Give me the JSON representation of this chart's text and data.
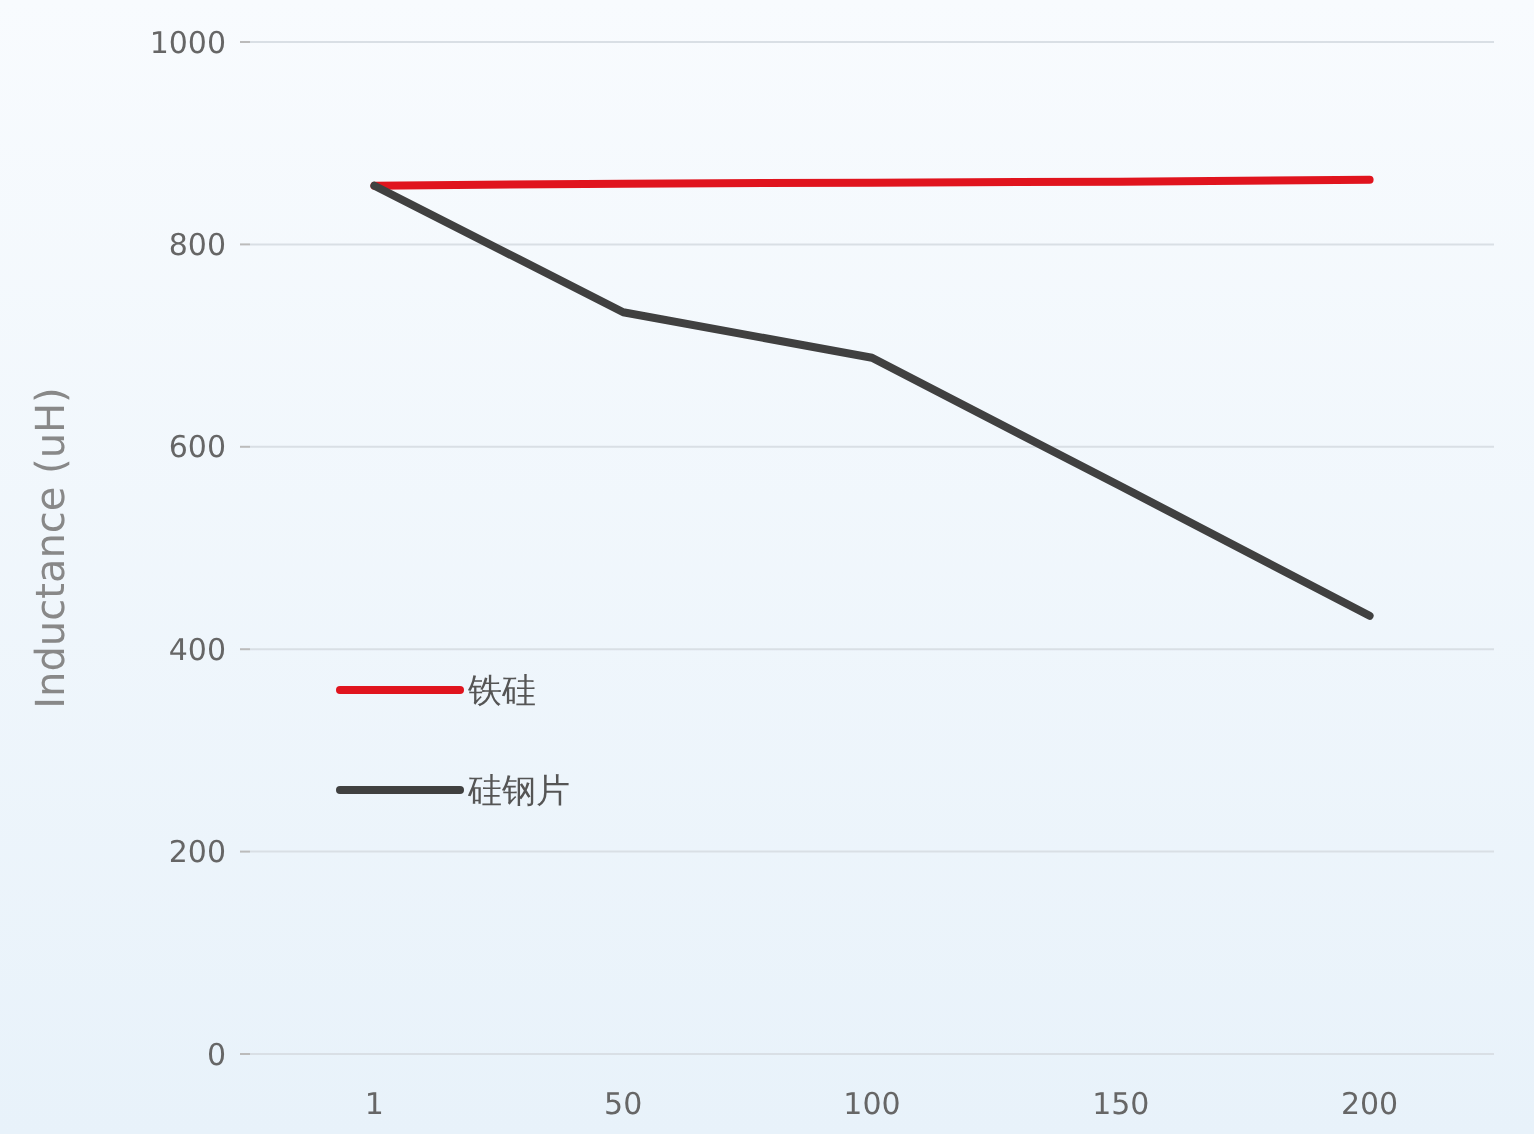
{
  "chart_data": {
    "type": "line",
    "ylabel": "Inductance (uH)",
    "categories": [
      "1",
      "50",
      "100",
      "150",
      "200"
    ],
    "series": [
      {
        "name": "铁硅",
        "color": "#e0141e",
        "values": [
          858,
          860,
          861,
          862,
          864
        ]
      },
      {
        "name": "硅钢片",
        "color": "#404040",
        "values": [
          858,
          733,
          688,
          561,
          433
        ]
      }
    ],
    "ylim": [
      0,
      1000
    ],
    "yticks": [
      0,
      200,
      400,
      600,
      800,
      1000
    ],
    "grid": "y",
    "legend": "center left",
    "marker": "none",
    "line_style": "solid"
  }
}
